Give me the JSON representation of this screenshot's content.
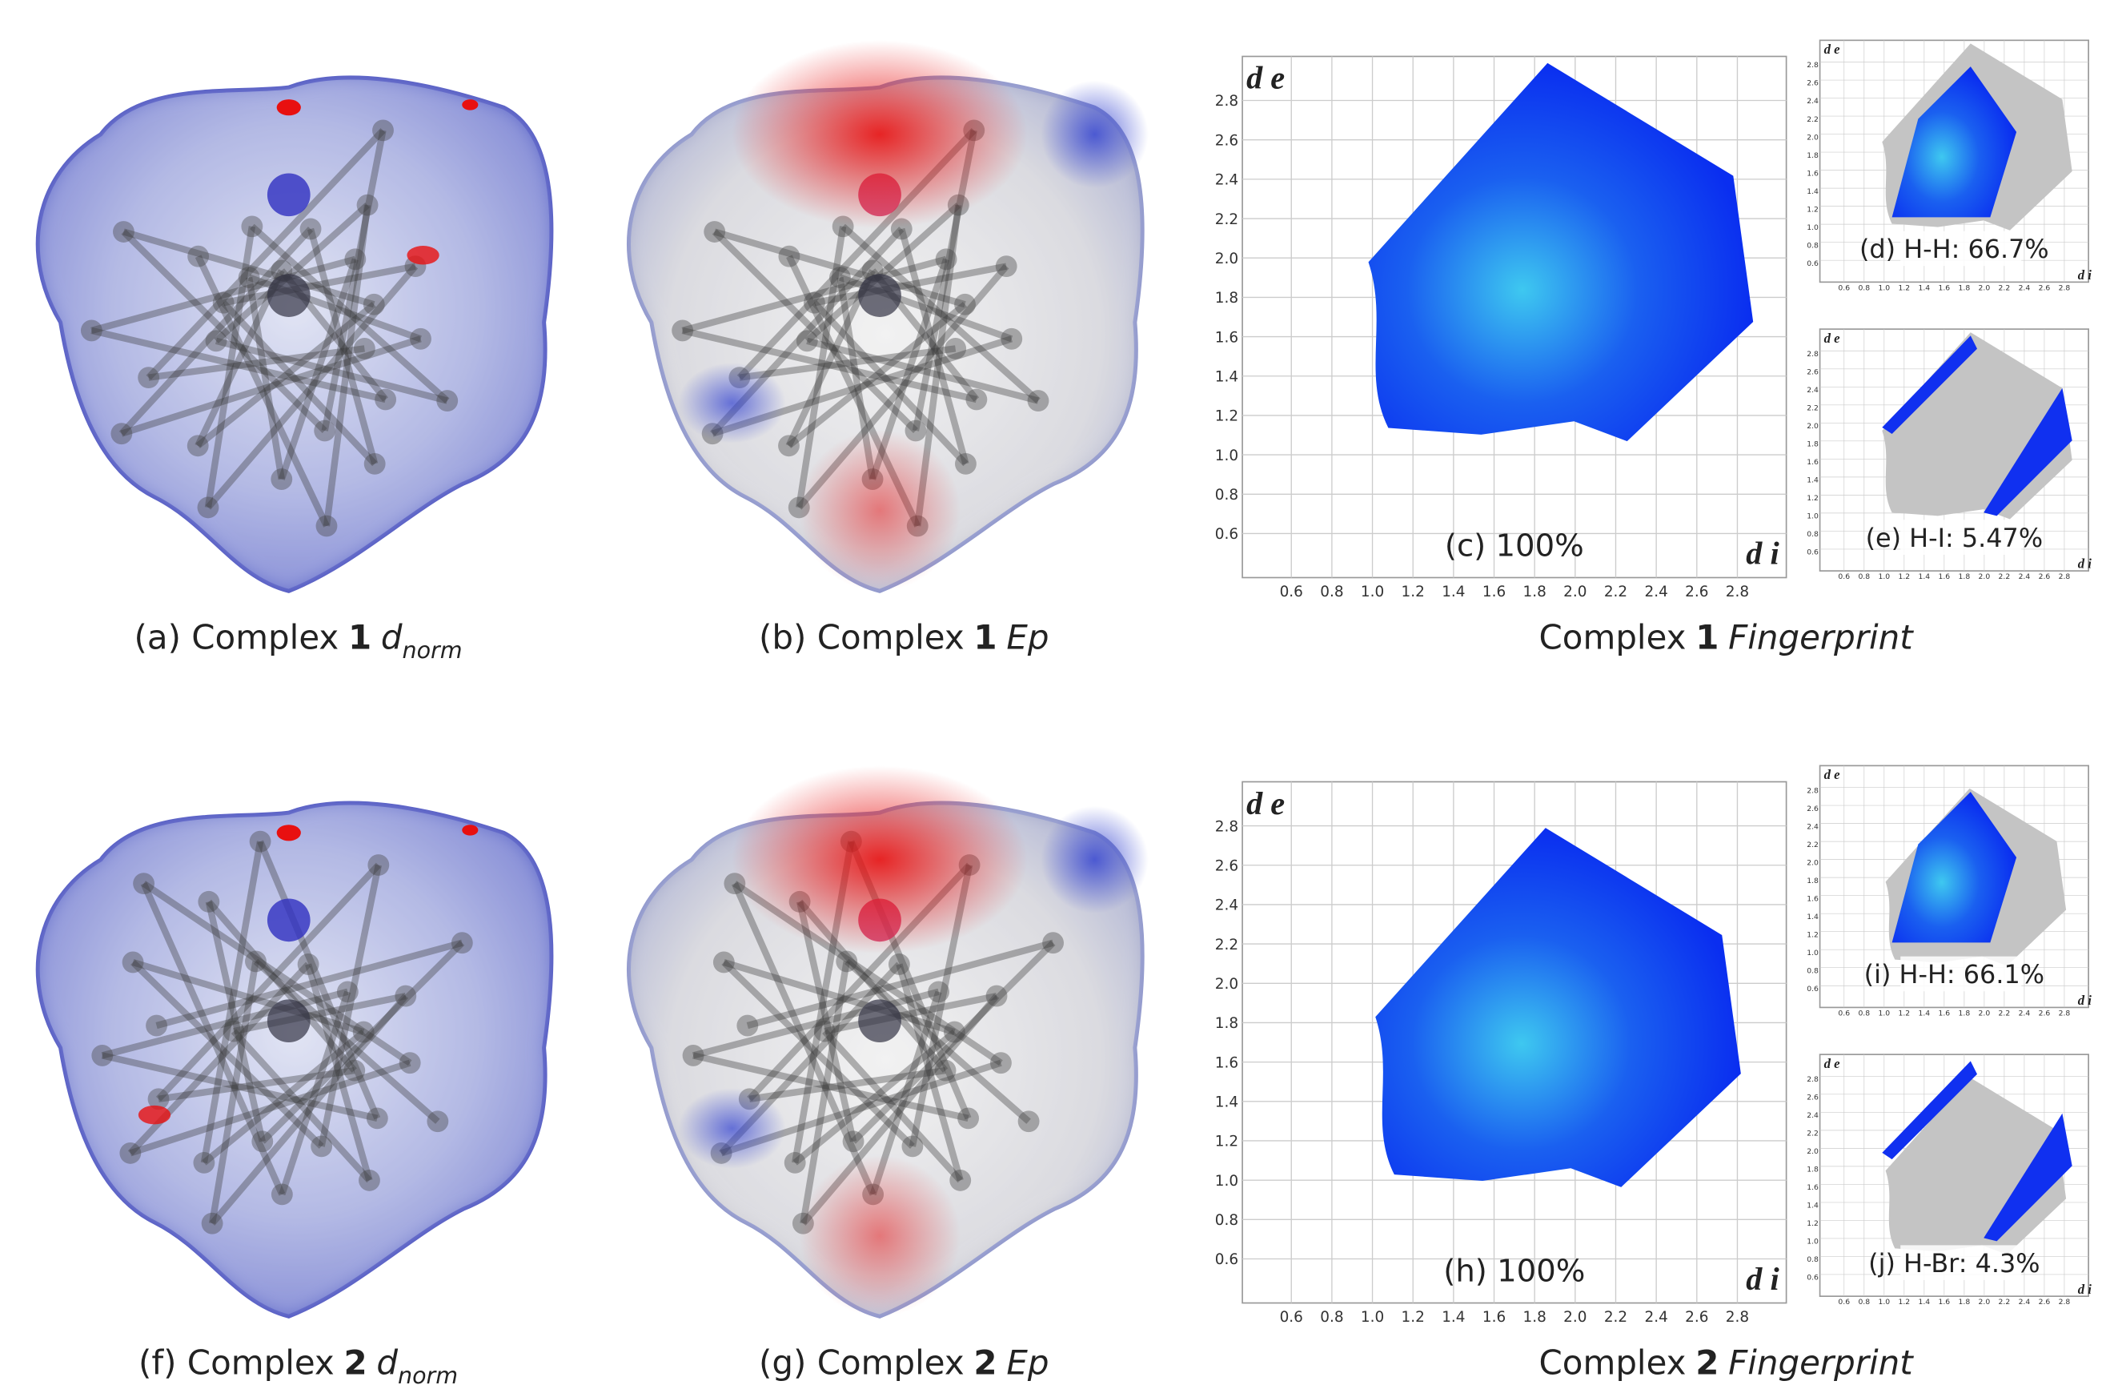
{
  "ticks": [
    "0.6",
    "0.8",
    "1.0",
    "1.2",
    "1.4",
    "1.6",
    "1.8",
    "2.0",
    "2.2",
    "2.4",
    "2.6",
    "2.8"
  ],
  "axis_labels": {
    "y": "d e",
    "x": "d i"
  },
  "rows": [
    {
      "panels": [
        {
          "caption": {
            "label": "(a) Complex",
            "number": "1",
            "measure": "d",
            "subscript": "norm"
          }
        },
        {
          "caption": {
            "label": "(b) Complex",
            "number": "1",
            "measure": "Ep"
          }
        }
      ],
      "fingerprint": {
        "caption": {
          "label": "Complex",
          "number": "1",
          "measure": "Fingerprint"
        },
        "main": "(c) 100%",
        "small": [
          "(d) H-H: 66.7%",
          "(e) H-I: 5.47%"
        ]
      }
    },
    {
      "panels": [
        {
          "caption": {
            "label": "(f) Complex",
            "number": "2",
            "measure": "d",
            "subscript": "norm"
          }
        },
        {
          "caption": {
            "label": "(g) Complex",
            "number": "2",
            "measure": "Ep"
          }
        }
      ],
      "fingerprint": {
        "caption": {
          "label": "Complex",
          "number": "2",
          "measure": "Fingerprint"
        },
        "main": "(h) 100%",
        "small": [
          "(i) H-H: 66.1%",
          "(j) H-Br: 4.3%"
        ]
      }
    }
  ]
}
